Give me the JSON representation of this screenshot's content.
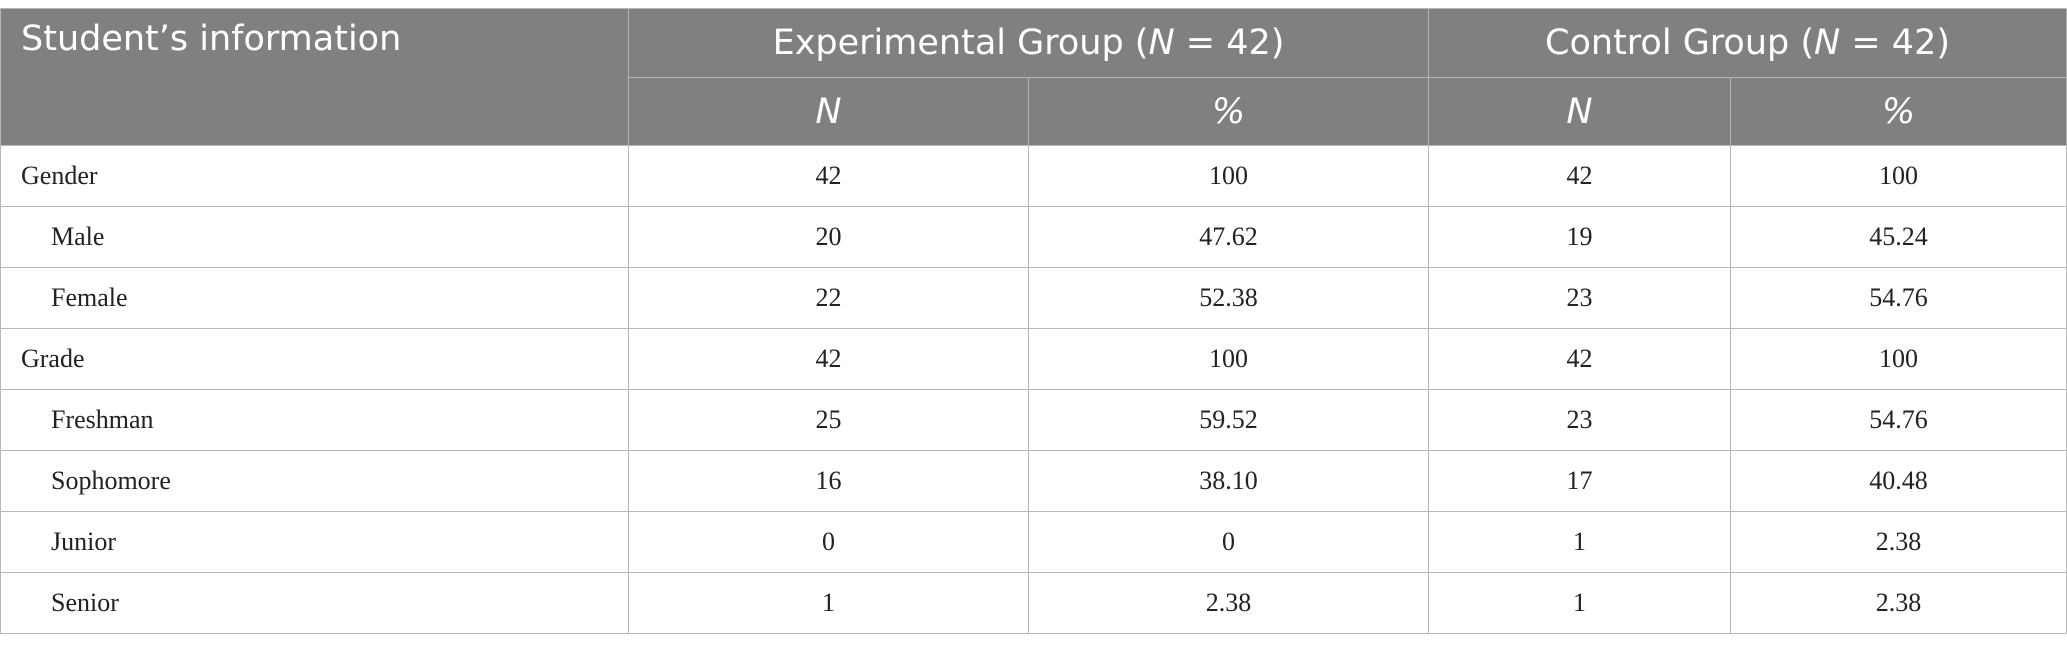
{
  "header": {
    "col0": "Student’s information",
    "exp_group": {
      "prefix": "Experimental Group (",
      "n": "N",
      "suffix": " = 42)"
    },
    "ctrl_group": {
      "prefix": "Control Group (",
      "n": "N",
      "suffix": " = 42)"
    },
    "sub": [
      "N",
      "%",
      "N",
      "%"
    ]
  },
  "rows": [
    {
      "label": "Gender",
      "indent": false,
      "values": [
        "42",
        "100",
        "42",
        "100"
      ]
    },
    {
      "label": "Male",
      "indent": true,
      "values": [
        "20",
        "47.62",
        "19",
        "45.24"
      ]
    },
    {
      "label": "Female",
      "indent": true,
      "values": [
        "22",
        "52.38",
        "23",
        "54.76"
      ]
    },
    {
      "label": "Grade",
      "indent": false,
      "values": [
        "42",
        "100",
        "42",
        "100"
      ]
    },
    {
      "label": "Freshman",
      "indent": true,
      "values": [
        "25",
        "59.52",
        "23",
        "54.76"
      ]
    },
    {
      "label": "Sophomore",
      "indent": true,
      "values": [
        "16",
        "38.10",
        "17",
        "40.48"
      ]
    },
    {
      "label": "Junior",
      "indent": true,
      "values": [
        "0",
        "0",
        "1",
        "2.38"
      ]
    },
    {
      "label": "Senior",
      "indent": true,
      "values": [
        "1",
        "2.38",
        "1",
        "2.38"
      ]
    }
  ],
  "colors": {
    "header_bg": "#808080",
    "header_text": "#ffffff",
    "grid": "#b8b8b8"
  }
}
